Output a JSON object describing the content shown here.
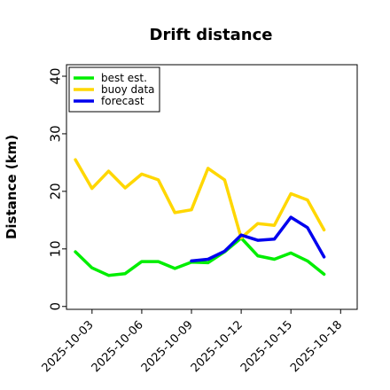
{
  "chart_data": {
    "type": "line",
    "title": "Drift distance",
    "xlabel": "",
    "ylabel": "Distance (km)",
    "ylim": [
      -0.5,
      42
    ],
    "yticks": [
      0,
      10,
      20,
      30,
      40
    ],
    "xlim": [
      "2025-10-01T11:00",
      "2025-10-19T00:00"
    ],
    "xticks": [
      {
        "date": "2025-10-03",
        "label": "2025-10-03",
        "color": "#000000"
      },
      {
        "date": "2025-10-06",
        "label": "2025-10-06",
        "color": "#000000"
      },
      {
        "date": "2025-10-09",
        "label": "2025-10-09",
        "color": "#228B22"
      },
      {
        "date": "2025-10-12",
        "label": "2025-10-12",
        "color": "#000000"
      },
      {
        "date": "2025-10-15",
        "label": "2025-10-15",
        "color": "#000000"
      },
      {
        "date": "2025-10-18",
        "label": "2025-10-18",
        "color": "#000000"
      }
    ],
    "grid": false,
    "legend_position": "top-left",
    "series": [
      {
        "name": "best est.",
        "color": "#00ee00",
        "x": [
          "2025-10-02",
          "2025-10-03",
          "2025-10-04",
          "2025-10-05",
          "2025-10-06",
          "2025-10-07",
          "2025-10-08",
          "2025-10-09",
          "2025-10-10",
          "2025-10-11",
          "2025-10-12",
          "2025-10-13",
          "2025-10-14",
          "2025-10-15",
          "2025-10-16",
          "2025-10-17"
        ],
        "values": [
          9.5,
          6.7,
          5.4,
          5.7,
          7.8,
          7.8,
          6.6,
          7.7,
          7.6,
          9.5,
          11.9,
          8.8,
          8.2,
          9.3,
          7.9,
          5.6
        ]
      },
      {
        "name": "buoy data",
        "color": "#ffd700",
        "x": [
          "2025-10-02",
          "2025-10-03",
          "2025-10-04",
          "2025-10-05",
          "2025-10-06",
          "2025-10-07",
          "2025-10-08",
          "2025-10-09",
          "2025-10-10",
          "2025-10-11",
          "2025-10-12",
          "2025-10-13",
          "2025-10-14",
          "2025-10-15",
          "2025-10-16",
          "2025-10-17"
        ],
        "values": [
          25.5,
          20.5,
          23.5,
          20.6,
          23.0,
          22.0,
          16.3,
          16.8,
          24.0,
          22.0,
          11.9,
          14.4,
          14.1,
          19.6,
          18.5,
          13.3
        ]
      },
      {
        "name": "forecast",
        "color": "#0000ee",
        "x": [
          "2025-10-09",
          "2025-10-10",
          "2025-10-11",
          "2025-10-12",
          "2025-10-13",
          "2025-10-14",
          "2025-10-15",
          "2025-10-16",
          "2025-10-17"
        ],
        "values": [
          7.9,
          8.2,
          9.6,
          12.4,
          11.5,
          11.7,
          15.5,
          13.7,
          8.6
        ]
      }
    ]
  }
}
